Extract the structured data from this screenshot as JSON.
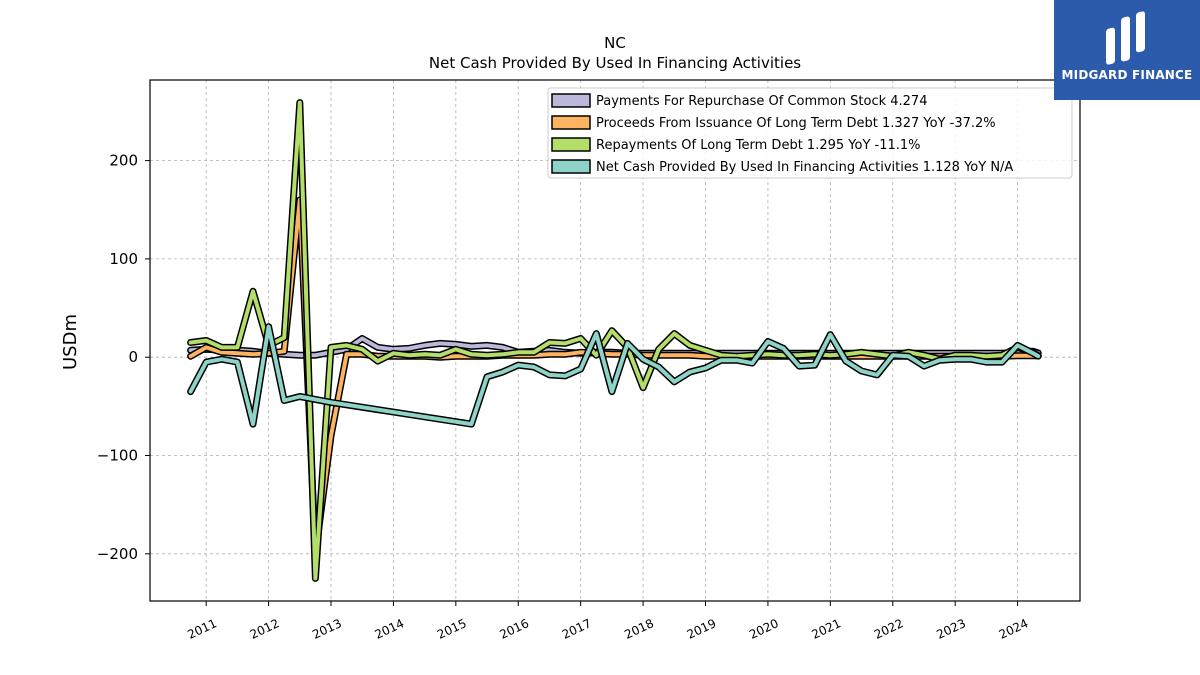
{
  "brand": {
    "name": "MIDGARD FINANCE",
    "color": "#2d5bab"
  },
  "chart_data": {
    "type": "line",
    "title": "NC",
    "subtitle": "Net Cash Provided By Used In Financing Activities",
    "xlabel": "",
    "ylabel": "USDm",
    "xlim": [
      2010.1,
      2025.0
    ],
    "ylim": [
      -248,
      282
    ],
    "x_ticks": [
      "2011",
      "2012",
      "2013",
      "2014",
      "2015",
      "2016",
      "2017",
      "2018",
      "2019",
      "2020",
      "2021",
      "2022",
      "2023",
      "2024"
    ],
    "y_ticks": [
      200,
      100,
      0,
      -100,
      -200
    ],
    "y_tick_labels": [
      "200",
      "100",
      "0",
      "−100",
      "−200"
    ],
    "grid": true,
    "legend_position": "top-right",
    "series": [
      {
        "name": "Payments For Repurchase Of Common Stock",
        "legend_label": "Payments For Repurchase Of Common Stock  4.274",
        "color": "#bcb8d9",
        "points": [
          [
            2010.75,
            7
          ],
          [
            2011.0,
            8
          ],
          [
            2011.25,
            7
          ],
          [
            2011.5,
            7
          ],
          [
            2011.75,
            6
          ],
          [
            2012.0,
            4
          ],
          [
            2012.25,
            3
          ],
          [
            2012.5,
            2
          ],
          [
            2012.75,
            2
          ],
          [
            2013.0,
            5
          ],
          [
            2013.25,
            8
          ],
          [
            2013.5,
            19
          ],
          [
            2013.75,
            10
          ],
          [
            2014.0,
            8
          ],
          [
            2014.25,
            9
          ],
          [
            2014.5,
            12
          ],
          [
            2014.75,
            14
          ],
          [
            2015.0,
            13
          ],
          [
            2015.25,
            11
          ],
          [
            2015.5,
            12
          ],
          [
            2015.75,
            10
          ],
          [
            2016.0,
            5
          ],
          [
            2016.25,
            6
          ],
          [
            2016.5,
            7
          ],
          [
            2016.75,
            5
          ],
          [
            2017.0,
            4
          ],
          [
            2017.25,
            5
          ],
          [
            2017.5,
            5
          ],
          [
            2017.75,
            4
          ],
          [
            2018.0,
            4
          ],
          [
            2018.25,
            4
          ],
          [
            2018.5,
            4
          ],
          [
            2018.75,
            4
          ],
          [
            2019.0,
            4
          ],
          [
            2019.25,
            4
          ],
          [
            2019.5,
            4
          ],
          [
            2019.75,
            4
          ],
          [
            2020.0,
            4
          ],
          [
            2020.25,
            4
          ],
          [
            2020.5,
            4
          ],
          [
            2020.75,
            4
          ],
          [
            2021.0,
            4
          ],
          [
            2021.25,
            4
          ],
          [
            2021.5,
            4
          ],
          [
            2021.75,
            4
          ],
          [
            2022.0,
            4
          ],
          [
            2022.25,
            4
          ],
          [
            2022.5,
            4
          ],
          [
            2022.75,
            4
          ],
          [
            2023.0,
            4
          ],
          [
            2023.25,
            4
          ],
          [
            2023.5,
            4
          ],
          [
            2023.75,
            4
          ],
          [
            2024.0,
            5
          ],
          [
            2024.25,
            6
          ],
          [
            2024.33,
            4.3
          ]
        ]
      },
      {
        "name": "Proceeds From Issuance Of Long Term Debt",
        "legend_label": "Proceeds From Issuance Of Long Term Debt  1.327 YoY -37.2%",
        "color": "#fdb462",
        "points": [
          [
            2010.75,
            1
          ],
          [
            2011.0,
            10
          ],
          [
            2011.25,
            5
          ],
          [
            2011.5,
            4
          ],
          [
            2011.75,
            3
          ],
          [
            2012.0,
            4
          ],
          [
            2012.25,
            6
          ],
          [
            2012.5,
            160
          ],
          [
            2012.75,
            -200
          ],
          [
            2013.0,
            -80
          ],
          [
            2013.25,
            3
          ],
          [
            2013.5,
            3
          ],
          [
            2013.75,
            1
          ],
          [
            2014.0,
            1
          ],
          [
            2014.25,
            1
          ],
          [
            2014.5,
            1
          ],
          [
            2014.75,
            0
          ],
          [
            2015.0,
            1
          ],
          [
            2015.25,
            1
          ],
          [
            2015.5,
            1
          ],
          [
            2015.75,
            2
          ],
          [
            2016.0,
            2
          ],
          [
            2016.25,
            2
          ],
          [
            2016.5,
            3
          ],
          [
            2016.75,
            3
          ],
          [
            2017.0,
            5
          ],
          [
            2017.25,
            4
          ],
          [
            2017.5,
            3
          ],
          [
            2017.75,
            3
          ],
          [
            2018.0,
            2
          ],
          [
            2018.25,
            2
          ],
          [
            2018.5,
            2
          ],
          [
            2018.75,
            2
          ],
          [
            2019.0,
            1
          ],
          [
            2019.25,
            1
          ],
          [
            2019.5,
            1
          ],
          [
            2019.75,
            1
          ],
          [
            2020.0,
            1
          ],
          [
            2020.25,
            1
          ],
          [
            2020.5,
            1
          ],
          [
            2020.75,
            1
          ],
          [
            2021.0,
            1
          ],
          [
            2021.25,
            1
          ],
          [
            2021.5,
            1
          ],
          [
            2021.75,
            1
          ],
          [
            2022.0,
            1
          ],
          [
            2022.25,
            1
          ],
          [
            2022.5,
            1
          ],
          [
            2022.75,
            1
          ],
          [
            2023.0,
            1
          ],
          [
            2023.25,
            1
          ],
          [
            2023.5,
            1
          ],
          [
            2023.75,
            1
          ],
          [
            2024.0,
            1.5
          ],
          [
            2024.25,
            1.5
          ],
          [
            2024.33,
            1.3
          ]
        ]
      },
      {
        "name": "Repayments Of Long Term Debt",
        "legend_label": "Repayments Of Long Term Debt  1.295 YoY -11.1%",
        "color": "#b3de69",
        "points": [
          [
            2010.75,
            15
          ],
          [
            2011.0,
            17
          ],
          [
            2011.25,
            10
          ],
          [
            2011.5,
            10
          ],
          [
            2011.75,
            67
          ],
          [
            2012.0,
            12
          ],
          [
            2012.25,
            20
          ],
          [
            2012.5,
            259
          ],
          [
            2012.75,
            -225
          ],
          [
            2013.0,
            10
          ],
          [
            2013.25,
            12
          ],
          [
            2013.5,
            8
          ],
          [
            2013.75,
            -4
          ],
          [
            2014.0,
            4
          ],
          [
            2014.25,
            2
          ],
          [
            2014.5,
            3
          ],
          [
            2014.75,
            2
          ],
          [
            2015.0,
            8
          ],
          [
            2015.25,
            3
          ],
          [
            2015.5,
            2
          ],
          [
            2015.75,
            3
          ],
          [
            2016.0,
            5
          ],
          [
            2016.25,
            5
          ],
          [
            2016.5,
            15
          ],
          [
            2016.75,
            14
          ],
          [
            2017.0,
            19
          ],
          [
            2017.25,
            2
          ],
          [
            2017.5,
            27
          ],
          [
            2017.75,
            10
          ],
          [
            2018.0,
            -31
          ],
          [
            2018.25,
            8
          ],
          [
            2018.5,
            24
          ],
          [
            2018.75,
            12
          ],
          [
            2019.0,
            7
          ],
          [
            2019.25,
            2
          ],
          [
            2019.5,
            1
          ],
          [
            2019.75,
            2
          ],
          [
            2020.0,
            3
          ],
          [
            2020.25,
            2
          ],
          [
            2020.5,
            2
          ],
          [
            2020.75,
            3
          ],
          [
            2021.0,
            2
          ],
          [
            2021.25,
            3
          ],
          [
            2021.5,
            5
          ],
          [
            2021.75,
            3
          ],
          [
            2022.0,
            1
          ],
          [
            2022.25,
            5
          ],
          [
            2022.5,
            2
          ],
          [
            2022.75,
            -2
          ],
          [
            2023.0,
            2
          ],
          [
            2023.25,
            2
          ],
          [
            2023.5,
            1
          ],
          [
            2023.75,
            2
          ],
          [
            2024.0,
            10
          ],
          [
            2024.25,
            5
          ],
          [
            2024.33,
            1.3
          ]
        ]
      },
      {
        "name": "Net Cash Provided By Used In Financing Activities",
        "legend_label": "Net Cash Provided By Used In Financing Activities  1.128 YoY N/A",
        "color": "#8dd3c7",
        "points": [
          [
            2010.75,
            -35
          ],
          [
            2011.0,
            -5
          ],
          [
            2011.25,
            -2
          ],
          [
            2011.5,
            -5
          ],
          [
            2011.75,
            -68
          ],
          [
            2012.0,
            31
          ],
          [
            2012.25,
            -44
          ],
          [
            2012.5,
            -40
          ],
          [
            2013.0,
            -46
          ],
          [
            2015.25,
            -68
          ],
          [
            2015.5,
            -20
          ],
          [
            2015.75,
            -15
          ],
          [
            2016.0,
            -8
          ],
          [
            2016.25,
            -10
          ],
          [
            2016.5,
            -18
          ],
          [
            2016.75,
            -19
          ],
          [
            2017.0,
            -12
          ],
          [
            2017.25,
            24
          ],
          [
            2017.5,
            -35
          ],
          [
            2017.75,
            14
          ],
          [
            2018.0,
            -2
          ],
          [
            2018.25,
            -10
          ],
          [
            2018.5,
            -25
          ],
          [
            2018.75,
            -15
          ],
          [
            2019.0,
            -11
          ],
          [
            2019.25,
            -3
          ],
          [
            2019.5,
            -3
          ],
          [
            2019.75,
            -6
          ],
          [
            2020.0,
            16
          ],
          [
            2020.25,
            9
          ],
          [
            2020.5,
            -9
          ],
          [
            2020.75,
            -8
          ],
          [
            2021.0,
            23
          ],
          [
            2021.25,
            -4
          ],
          [
            2021.5,
            -14
          ],
          [
            2021.75,
            -18
          ],
          [
            2022.0,
            2
          ],
          [
            2022.25,
            1
          ],
          [
            2022.5,
            -9
          ],
          [
            2022.75,
            -3
          ],
          [
            2023.0,
            -2
          ],
          [
            2023.25,
            -2
          ],
          [
            2023.5,
            -5
          ],
          [
            2023.75,
            -5
          ],
          [
            2024.0,
            12
          ],
          [
            2024.25,
            4
          ],
          [
            2024.33,
            1.1
          ]
        ]
      }
    ]
  }
}
